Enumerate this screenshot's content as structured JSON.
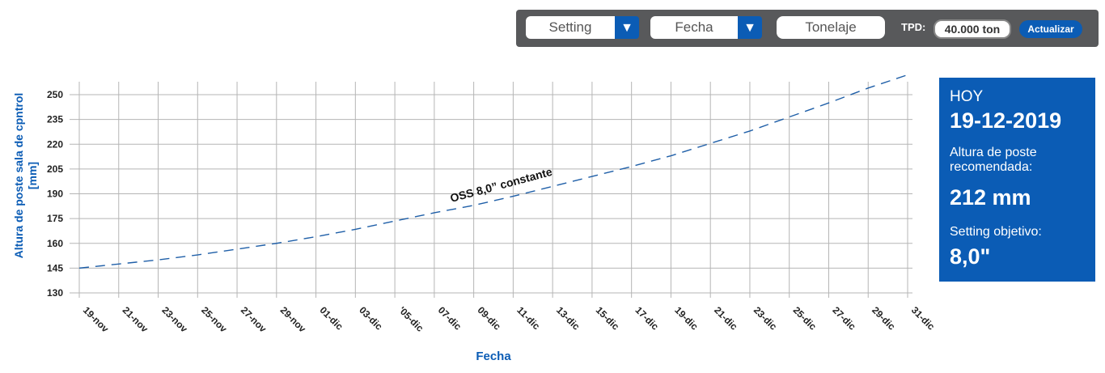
{
  "toolbar": {
    "setting_label": "Setting",
    "fecha_label": "Fecha",
    "tonelaje_label": "Tonelaje",
    "tpd_label": "TPD:",
    "tpd_value": "40.000 ton",
    "update_label": "Actualizar",
    "dropdown_icon": "triangle-down-icon",
    "background_color": "#58595b",
    "accent_color": "#0b5cb5"
  },
  "info": {
    "today_label": "HOY",
    "today_date": "19-12-2019",
    "rec_label_line1": "Altura de poste",
    "rec_label_line2": "recomendada:",
    "rec_value": "212 mm",
    "target_label": "Setting objetivo:",
    "target_value": "8,0\""
  },
  "chart_data": {
    "type": "line",
    "xlabel": "Fecha",
    "ylabel_line1": "Altura de poste sala de cpntrol",
    "ylabel_line2": "[mm]",
    "categories": [
      "19-nov",
      "21-nov",
      "23-nov",
      "25-nov",
      "27-nov",
      "29-nov",
      "01-dic",
      "03-dic",
      "'05-dic",
      "07-dic",
      "09-dic",
      "11-dic",
      "13-dic",
      "15-dic",
      "17-dic",
      "19-dic",
      "21-dic",
      "23-dic",
      "25-dic",
      "27-dic",
      "29-dic",
      "31-dic"
    ],
    "yticks": [
      130,
      145,
      160,
      175,
      190,
      205,
      220,
      235,
      250
    ],
    "ylim": [
      130,
      258
    ],
    "grid": true,
    "series": [
      {
        "name": "OSS 8,0” constante",
        "style": "dashed",
        "color": "#1f5fa8",
        "values": [
          145,
          147.5,
          150,
          153,
          156.5,
          160,
          164,
          168.5,
          173.5,
          178.5,
          183,
          188.5,
          194.5,
          200.5,
          206.5,
          213,
          220.5,
          228,
          236.5,
          245,
          254,
          262
        ]
      }
    ]
  }
}
